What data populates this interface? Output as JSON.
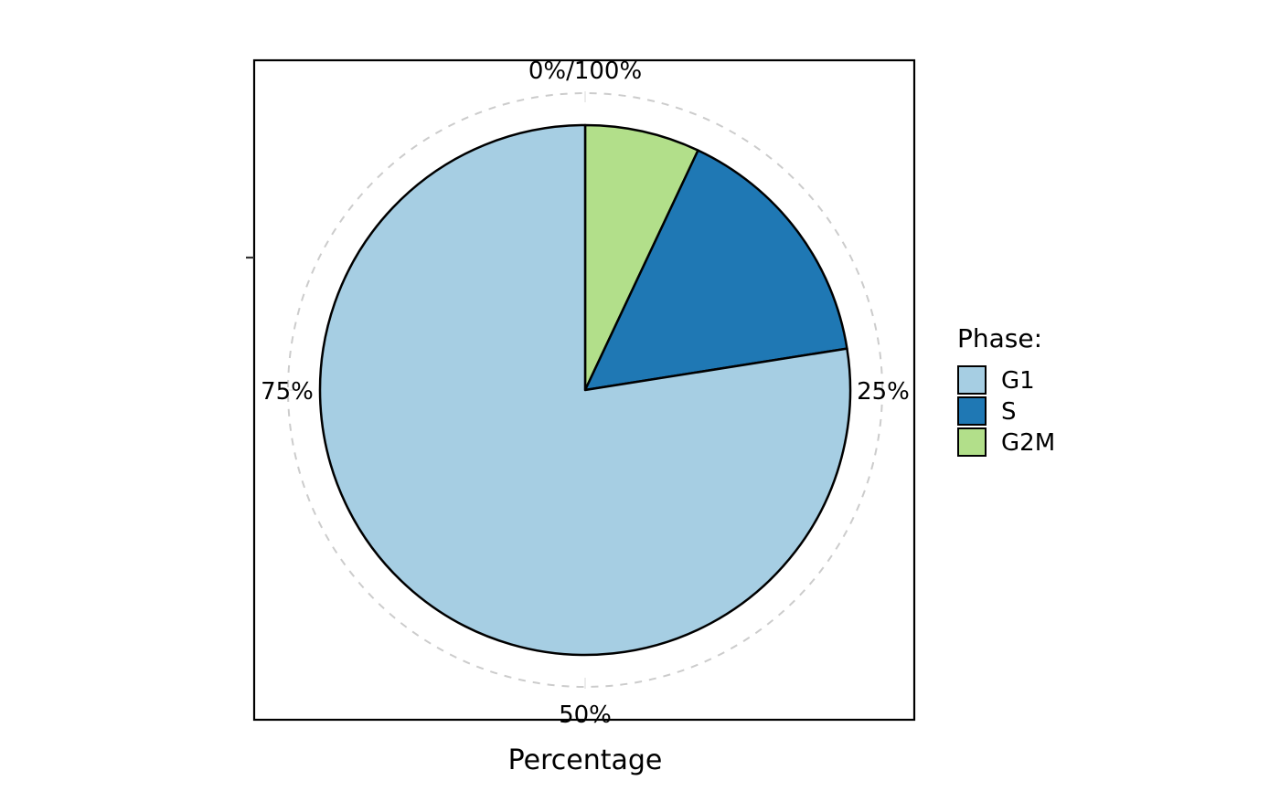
{
  "chart_data": {
    "type": "pie",
    "categories": [
      "G1",
      "S",
      "G2M"
    ],
    "values": [
      77.5,
      15.5,
      7.0
    ],
    "colors": [
      "#a6cee3",
      "#1f78b4",
      "#b2df8a"
    ],
    "xlabel": "Percentage",
    "angular_ticks": [
      "0%/100%",
      "25%",
      "50%",
      "75%"
    ],
    "angular_tick_values": [
      0,
      25,
      50,
      75
    ],
    "direction": "clockwise",
    "start": "top",
    "segment_order": [
      "G2M",
      "S",
      "G1"
    ],
    "grid": "dashed",
    "grid_color": "#cccccc",
    "legend": {
      "title": "Phase:",
      "position": "right",
      "items": [
        "G1",
        "S",
        "G2M"
      ]
    }
  }
}
